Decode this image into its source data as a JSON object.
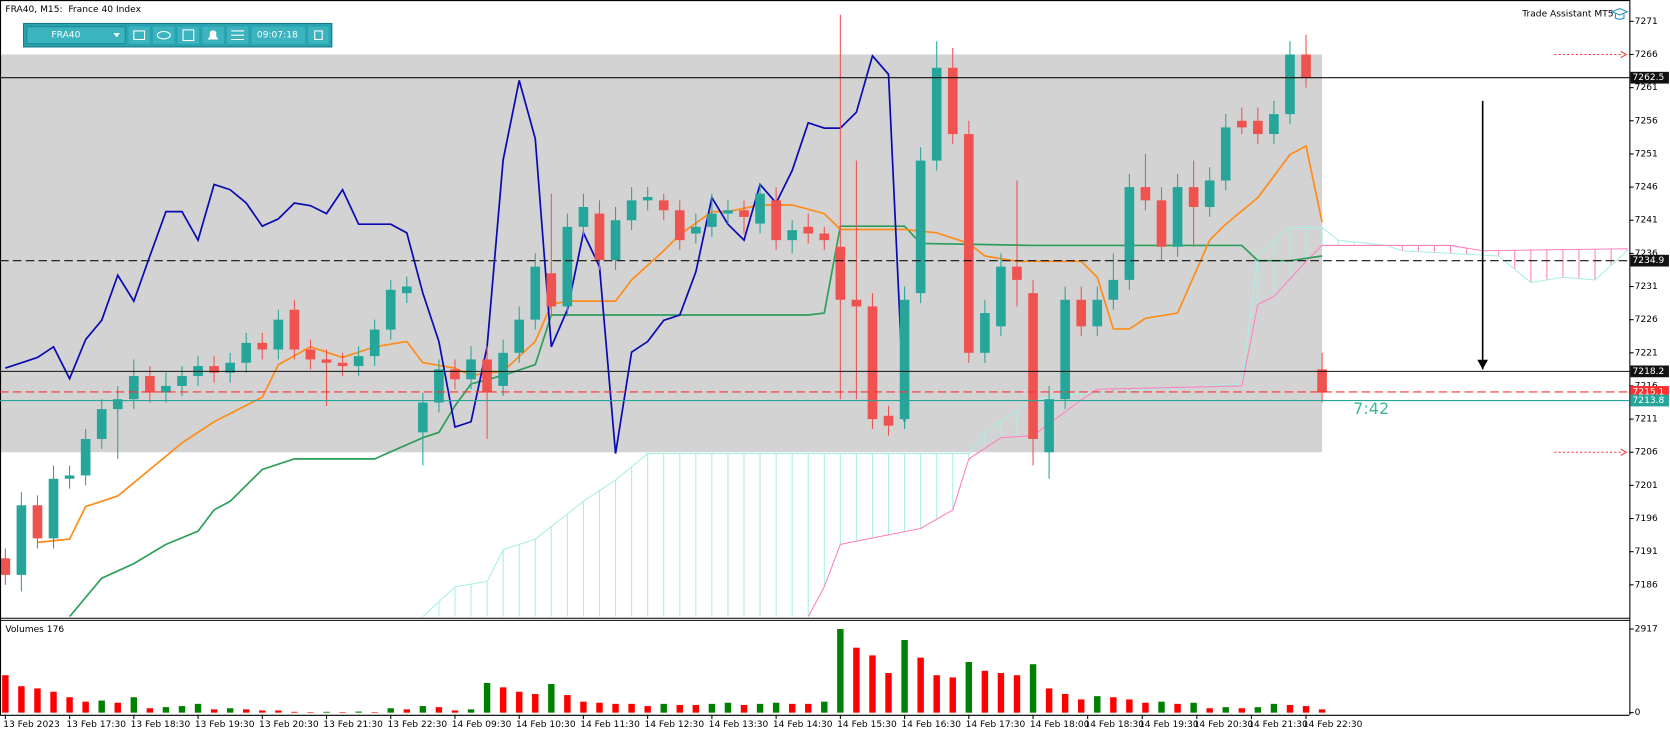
{
  "toolbar": {
    "symbol": "FRA40",
    "clock": "09:07:18"
  },
  "trade_assistant": "Trade Assistant MT5",
  "countdown": "7:42",
  "chart_data": [
    {
      "type": "candlestick",
      "title": "FRA40, M15:  France 40 Index",
      "xtick_labels": [
        "13 Feb 2023",
        "13 Feb 17:30",
        "13 Feb 18:30",
        "13 Feb 19:30",
        "13 Feb 20:30",
        "13 Feb 21:30",
        "13 Feb 22:30",
        "14 Feb 09:30",
        "14 Feb 10:30",
        "14 Feb 11:30",
        "14 Feb 12:30",
        "14 Feb 13:30",
        "14 Feb 14:30",
        "14 Feb 15:30",
        "14 Feb 16:30",
        "14 Feb 17:30",
        "14 Feb 18:00",
        "14 Feb 18:30",
        "14 Feb 19:30",
        "14 Feb 20:30",
        "14 Feb 21:30",
        "14 Feb 22:30"
      ],
      "open": [
        7190,
        7187.5,
        7198,
        7193,
        7202,
        7202.5,
        7208,
        7212.5,
        7214,
        7217.5,
        7215,
        7216,
        7217.5,
        7219,
        7218,
        7219.5,
        7222.5,
        7221.5,
        7227.5,
        7221.5,
        7220,
        7219.5,
        7219,
        7220.5,
        7224.5,
        7230,
        7209,
        7213.5,
        7218.5,
        7217,
        7220,
        7216,
        7221,
        7226,
        7233,
        7228,
        7240,
        7242,
        7235,
        7241,
        7244,
        7244,
        7242.5,
        7239,
        7240,
        7242,
        7242.5,
        7240.5,
        7244,
        7238,
        7240,
        7239,
        7237,
        7229,
        7228,
        7211.5,
        7211,
        7230,
        7250,
        7264,
        7254,
        7221,
        7225,
        7234,
        7230,
        7206,
        7214,
        7229,
        7225,
        7229,
        7232,
        7246,
        7244,
        7237,
        7246,
        7243,
        7247,
        7256,
        7256,
        7254,
        7257,
        7266,
        7218.5
      ],
      "high": [
        7191.5,
        7200,
        7199.5,
        7204,
        7204,
        7209.5,
        7214,
        7216,
        7220,
        7219,
        7218,
        7219,
        7220.5,
        7220.5,
        7221,
        7224,
        7224,
        7227.5,
        7229,
        7223,
        7221.5,
        7221,
        7222,
        7226,
        7232,
        7232.5,
        7215,
        7220,
        7220,
        7222,
        7222,
        7223,
        7228,
        7236,
        7245,
        7242,
        7245,
        7244,
        7243,
        7246,
        7246,
        7245,
        7244,
        7242,
        7245,
        7244,
        7244,
        7246.5,
        7246,
        7241,
        7242,
        7240,
        7272,
        7250,
        7230,
        7213,
        7231,
        7252,
        7268,
        7267,
        7256,
        7229,
        7236,
        7247,
        7232,
        7216,
        7231,
        7231,
        7231,
        7236,
        7248,
        7251,
        7246,
        7248,
        7250,
        7249,
        7257,
        7258,
        7258,
        7259,
        7268,
        7269,
        7221
      ],
      "low": [
        7186,
        7185,
        7191.5,
        7191.5,
        7200.5,
        7201,
        7206.5,
        7205,
        7212.5,
        7213.5,
        7213.5,
        7214.5,
        7216,
        7216.5,
        7216.5,
        7218,
        7220,
        7220,
        7220,
        7218.5,
        7213,
        7217.5,
        7217.5,
        7219,
        7223,
        7228.5,
        7204,
        7212,
        7215.5,
        7215.5,
        7208,
        7214.5,
        7219.5,
        7224.5,
        7226.5,
        7226.5,
        7238.5,
        7233.5,
        7233.5,
        7239.5,
        7242.5,
        7241,
        7236.5,
        7237.5,
        7238.5,
        7240.5,
        7239,
        7239,
        7236.5,
        7236,
        7237.5,
        7236.5,
        7214,
        7214,
        7209.5,
        7208.5,
        7209.5,
        7228.5,
        7248.5,
        7252.5,
        7219.5,
        7219.5,
        7223.5,
        7228,
        7204,
        7202,
        7212.5,
        7223.5,
        7223.5,
        7227.5,
        7230.5,
        7242.5,
        7235,
        7235.5,
        7237,
        7241.5,
        7245.5,
        7254,
        7252.5,
        7252.5,
        7255.5,
        7261,
        7213.5
      ],
      "close": [
        7187.5,
        7198,
        7193,
        7202,
        7202.5,
        7208,
        7212.5,
        7214,
        7217.5,
        7215,
        7216,
        7217.5,
        7219,
        7218,
        7219.5,
        7222.5,
        7221.5,
        7226,
        7221.5,
        7220,
        7219.5,
        7219,
        7220.5,
        7224.5,
        7230.5,
        7231,
        7213.5,
        7218.5,
        7217,
        7220,
        7215,
        7221,
        7226,
        7234,
        7228,
        7240,
        7243,
        7235,
        7241,
        7244,
        7244.5,
        7242.5,
        7238,
        7240,
        7242,
        7242.5,
        7241.5,
        7245,
        7238,
        7239.5,
        7239,
        7238,
        7229,
        7228,
        7211,
        7210,
        7229,
        7250,
        7264,
        7254,
        7221,
        7227,
        7234,
        7232,
        7208,
        7214,
        7229,
        7225,
        7229,
        7232,
        7246,
        7244,
        7237,
        7246,
        7243,
        7247,
        7255,
        7255,
        7254,
        7257,
        7266,
        7262.5,
        7215
      ],
      "up_color": "#26a69a",
      "down_color": "#ef5350",
      "ylim": [
        7181.2,
        7273.9
      ],
      "yticks": [
        7271,
        7266,
        7261,
        7256,
        7251,
        7246,
        7241,
        7236,
        7231,
        7226,
        7221,
        7216,
        7211,
        7206,
        7201,
        7196,
        7191,
        7186
      ],
      "zone": {
        "low": 7206,
        "high": 7266,
        "end": 82,
        "color": "#d3d3d3"
      },
      "cloud": [
        {
          "color": "#a8efe4",
          "x": [
            26,
            28,
            30,
            31,
            33,
            36,
            38,
            40,
            60,
            61,
            64,
            66,
            77,
            78,
            80,
            82,
            83,
            86,
            87,
            93,
            95,
            97,
            99,
            101
          ],
          "values": [
            7181.2,
            7185.7,
            7186.5,
            7191.3,
            7192.9,
            7198.6,
            7201.8,
            7205.8,
            7205.8,
            7209.0,
            7213.9,
            7214.7,
            7216.3,
            7235.6,
            7239.9,
            7239.9,
            7238.0,
            7237.2,
            7236.4,
            7235.6,
            7231.6,
            7232.4,
            7232.0,
            7236.4
          ]
        },
        {
          "color": "#ff80c0",
          "x": [
            50,
            51,
            52,
            57,
            59,
            60,
            62,
            64,
            67,
            68,
            77,
            78,
            79,
            81,
            82,
            90,
            92,
            101
          ],
          "values": [
            7181.2,
            7185.7,
            7192.1,
            7194.5,
            7197.3,
            7205.0,
            7208.2,
            7208.5,
            7213.9,
            7215.5,
            7216.0,
            7228.3,
            7229.5,
            7234.8,
            7237.2,
            7237.2,
            7236.4,
            7236.7
          ]
        }
      ],
      "indicators": [
        {
          "color": "#2e9e5b",
          "x": [
            4,
            6,
            8,
            10,
            12,
            13,
            14,
            16,
            18,
            23,
            26,
            27,
            28,
            29,
            31,
            33,
            34,
            50,
            51,
            52,
            56,
            57,
            64,
            77,
            78,
            80,
            82
          ],
          "values": [
            7181.2,
            7187.0,
            7189.2,
            7192.1,
            7194.1,
            7197.3,
            7198.6,
            7203.4,
            7205.0,
            7205.0,
            7208.2,
            7209.0,
            7213.0,
            7216.3,
            7217.6,
            7219.2,
            7226.7,
            7226.7,
            7227.0,
            7240.1,
            7240.1,
            7237.5,
            7237.2,
            7237.2,
            7234.9,
            7234.9,
            7235.6
          ]
        },
        {
          "color": "#ff8c1a",
          "x": [
            2,
            4,
            5,
            7,
            9,
            11,
            13,
            16,
            17,
            19,
            21,
            23,
            25,
            26,
            28,
            29,
            31,
            33,
            34,
            35,
            38,
            39,
            41,
            42,
            44,
            45,
            47,
            49,
            51,
            52,
            54,
            56,
            58,
            60,
            61,
            63,
            65,
            67,
            68,
            69,
            70,
            71,
            73,
            75,
            76,
            78,
            80,
            81,
            82
          ],
          "values": [
            7192.4,
            7192.9,
            7197.8,
            7199.4,
            7203.4,
            7207.4,
            7210.6,
            7214.3,
            7219.2,
            7221.9,
            7220.3,
            7221.9,
            7222.7,
            7219.5,
            7218.7,
            7217.6,
            7218.2,
            7222.7,
            7228.3,
            7228.8,
            7228.8,
            7232.0,
            7236.4,
            7238.8,
            7242.3,
            7242.3,
            7243.3,
            7243.3,
            7242.0,
            7239.6,
            7239.6,
            7239.6,
            7239.1,
            7237.5,
            7235.6,
            7234.8,
            7234.8,
            7234.8,
            7232.4,
            7224.6,
            7224.6,
            7226.2,
            7227.0,
            7238.0,
            7240.4,
            7244.4,
            7250.9,
            7252.2,
            7240.7
          ]
        },
        {
          "color": "#0a0ab4",
          "x": [
            0,
            1,
            2,
            3,
            4,
            5,
            6,
            7,
            8,
            9,
            10,
            11,
            12,
            13,
            14,
            15,
            16,
            17,
            18,
            19,
            20,
            21,
            22,
            23,
            24,
            25,
            26,
            27,
            28,
            29,
            30,
            31,
            32,
            33,
            34,
            35,
            36,
            37,
            38,
            39,
            40,
            41,
            42,
            43,
            44,
            45,
            46,
            47,
            48,
            49,
            50,
            51,
            52,
            53,
            54,
            55,
            56
          ],
          "values": [
            7218.7,
            7219.5,
            7220.3,
            7221.9,
            7217.1,
            7223.0,
            7225.9,
            7232.7,
            7228.8,
            7235.6,
            7242.3,
            7242.3,
            7238.0,
            7246.4,
            7245.6,
            7243.6,
            7240.1,
            7241.2,
            7243.6,
            7243.2,
            7242.0,
            7245.6,
            7240.4,
            7240.4,
            7240.4,
            7239.1,
            7230.0,
            7222.7,
            7209.8,
            7210.6,
            7221.9,
            7250.1,
            7262.1,
            7253.3,
            7221.9,
            7227.5,
            7239.1,
            7234.0,
            7205.8,
            7221.1,
            7222.7,
            7225.9,
            7226.7,
            7233.2,
            7244.4,
            7240.4,
            7238.0,
            7246.4,
            7243.6,
            7248.5,
            7255.7,
            7254.9,
            7254.9,
            7257.3,
            7265.8,
            7263.0,
            7210.6
          ]
        }
      ],
      "levels": [
        {
          "value": 7262.5,
          "color": "#111111",
          "dash": false
        },
        {
          "value": 7234.9,
          "color": "#111111",
          "dash": true
        },
        {
          "value": 7218.2,
          "color": "#111111",
          "dash": false
        },
        {
          "value": 7215.1,
          "color": "#ff3030",
          "dash": true
        },
        {
          "value": 7213.8,
          "color": "#26a69a",
          "dash": false
        }
      ],
      "targets": [
        7266,
        7206
      ],
      "arrow": {
        "x": 92,
        "from": 7259,
        "to": 7218.5
      }
    },
    {
      "type": "bar",
      "title": "Volumes 176",
      "values": [
        1306,
        922,
        845,
        730,
        538,
        384,
        422,
        346,
        538,
        154,
        192,
        230,
        307,
        115,
        154,
        115,
        77,
        77,
        30,
        20,
        30,
        20,
        38,
        20,
        154,
        115,
        230,
        192,
        77,
        115,
        1037,
        883,
        730,
        653,
        998,
        614,
        384,
        346,
        307,
        307,
        230,
        307,
        269,
        269,
        307,
        346,
        269,
        307,
        346,
        307,
        307,
        384,
        2917,
        2266,
        1997,
        1382,
        2534,
        1920,
        1306,
        1229,
        1766,
        1459,
        1382,
        1306,
        1690,
        845,
        653,
        461,
        576,
        538,
        461,
        346,
        384,
        307,
        346,
        154,
        192,
        154,
        192,
        307,
        269,
        230,
        115
      ],
      "up_color": "#008000",
      "down_color": "#ff0000",
      "ylim": [
        0,
        3200
      ],
      "yticks": [
        2917,
        0
      ]
    }
  ]
}
